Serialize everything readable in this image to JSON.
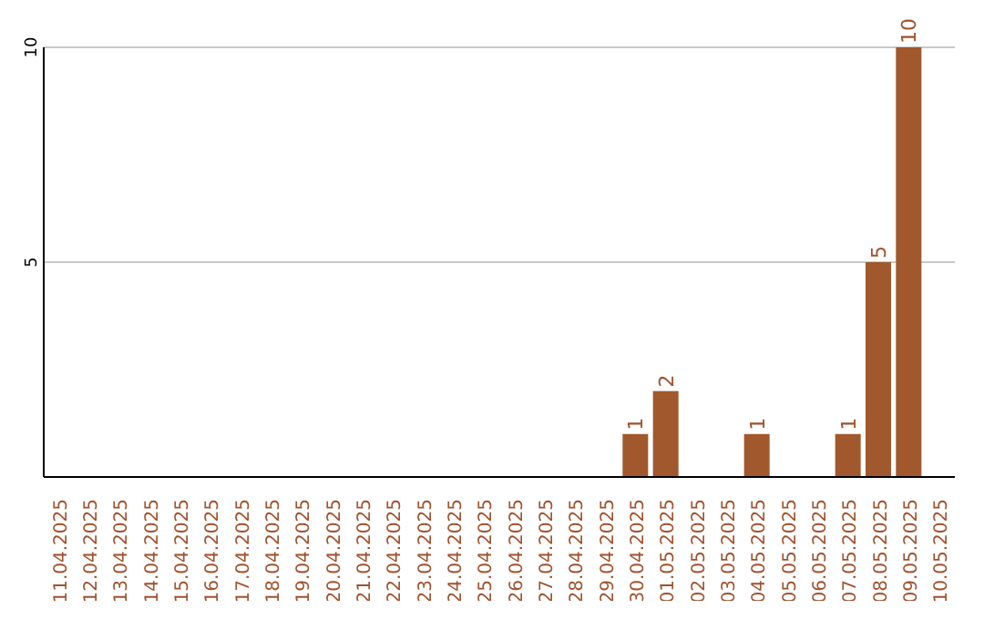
{
  "chart_data": {
    "type": "bar",
    "categories": [
      "11.04.2025",
      "12.04.2025",
      "13.04.2025",
      "14.04.2025",
      "15.04.2025",
      "16.04.2025",
      "17.04.2025",
      "18.04.2025",
      "19.04.2025",
      "20.04.2025",
      "21.04.2025",
      "22.04.2025",
      "23.04.2025",
      "24.04.2025",
      "25.04.2025",
      "26.04.2025",
      "27.04.2025",
      "28.04.2025",
      "29.04.2025",
      "30.04.2025",
      "01.05.2025",
      "02.05.2025",
      "03.05.2025",
      "04.05.2025",
      "05.05.2025",
      "06.05.2025",
      "07.05.2025",
      "08.05.2025",
      "09.05.2025",
      "10.05.2025"
    ],
    "values": [
      0,
      0,
      0,
      0,
      0,
      0,
      0,
      0,
      0,
      0,
      0,
      0,
      0,
      0,
      0,
      0,
      0,
      0,
      0,
      1,
      2,
      0,
      0,
      1,
      0,
      0,
      1,
      5,
      10,
      0
    ],
    "value_labels": [
      null,
      null,
      null,
      null,
      null,
      null,
      null,
      null,
      null,
      null,
      null,
      null,
      null,
      null,
      null,
      null,
      null,
      null,
      null,
      "1",
      "2",
      null,
      null,
      "1",
      null,
      null,
      "1",
      "5",
      "10",
      null
    ],
    "color": "#a0582c",
    "ylim": [
      0,
      10
    ],
    "yticks": [
      {
        "value": 0,
        "label": null
      },
      5,
      10
    ],
    "grid": "y"
  }
}
